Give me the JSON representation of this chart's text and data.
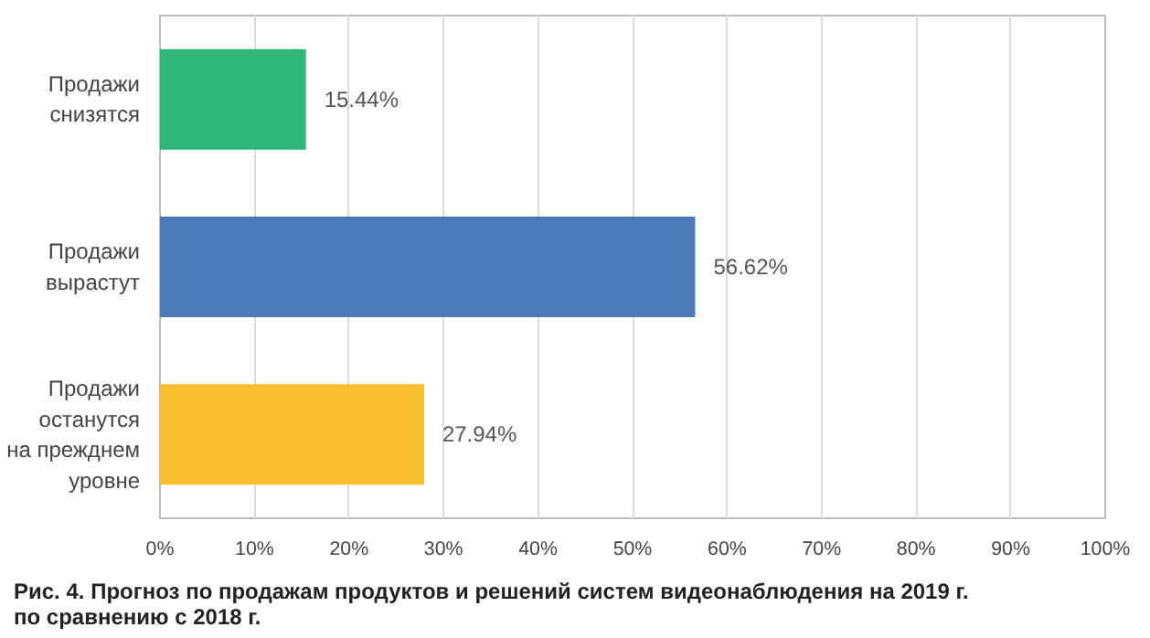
{
  "chart_data": {
    "type": "bar",
    "orientation": "horizontal",
    "categories": [
      "Продажи\nснизятся",
      "Продажи\nвырастут",
      "Продажи\nостанутся\nна прежднем\nуровне"
    ],
    "values": [
      15.44,
      56.62,
      27.94
    ],
    "colors": [
      "#2db87a",
      "#4a7ab8",
      "#f8be2b"
    ],
    "value_labels": [
      "15.44%",
      "56.62%",
      "27.94%"
    ],
    "xlim": [
      0,
      100
    ],
    "xticks": [
      {
        "value": 0,
        "label": "0%"
      },
      {
        "value": 10,
        "label": "10%"
      },
      {
        "value": 20,
        "label": "20%"
      },
      {
        "value": 30,
        "label": "30%"
      },
      {
        "value": 40,
        "label": "40%"
      },
      {
        "value": 50,
        "label": "50%"
      },
      {
        "value": 60,
        "label": "60%"
      },
      {
        "value": 70,
        "label": "70%"
      },
      {
        "value": 80,
        "label": "80%"
      },
      {
        "value": 90,
        "label": "90%"
      },
      {
        "value": 100,
        "label": "100%"
      }
    ],
    "grid": "x",
    "annotations": [
      "Рис. 4. Прогноз по продажам продуктов и решений систем видеонаблюдения на 2019 г.\nпо сравнению с 2018 г."
    ]
  }
}
